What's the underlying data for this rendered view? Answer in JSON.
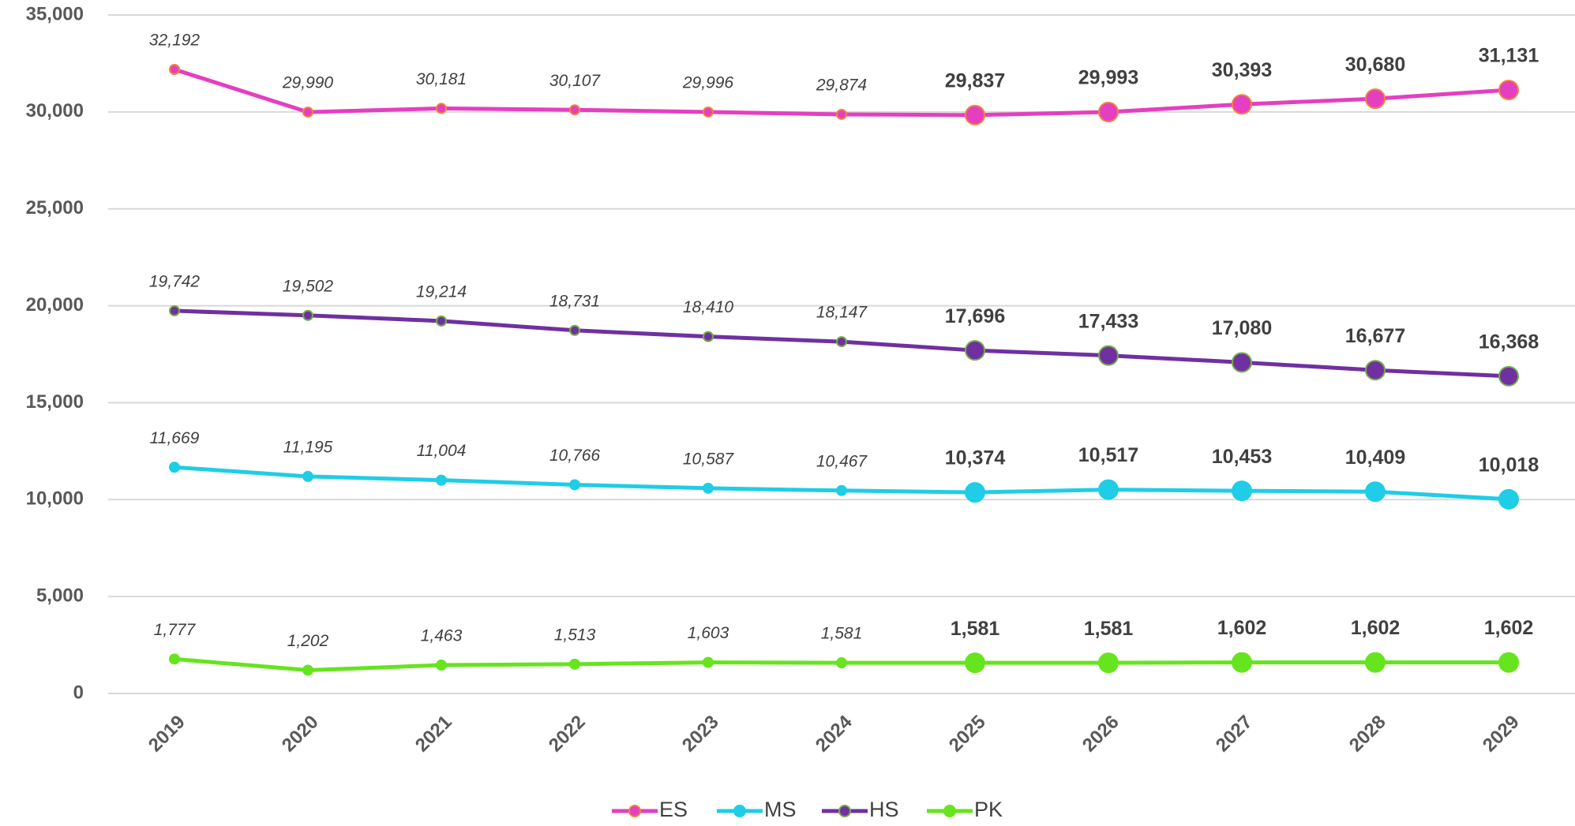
{
  "chart_data": {
    "type": "line",
    "categories": [
      "2019",
      "2020",
      "2021",
      "2022",
      "2023",
      "2024",
      "2025",
      "2026",
      "2027",
      "2028",
      "2029"
    ],
    "ylim": [
      0,
      35000
    ],
    "yticks": [
      0,
      {
        "value": 5000,
        "label": "5,000"
      },
      {
        "value": 10000,
        "label": "10,000"
      },
      {
        "value": 15000,
        "label": "15,000"
      },
      {
        "value": 20000,
        "label": "20,000"
      },
      {
        "value": 25000,
        "label": "25,000"
      },
      {
        "value": 30000,
        "label": "30,000"
      },
      {
        "value": 35000,
        "label": "35,000"
      }
    ],
    "grid": true,
    "legend": "bottom",
    "series": [
      {
        "name": "ES",
        "color": "#e43fc0",
        "edge": "#f4813a",
        "values": [
          32192,
          29990,
          30181,
          30107,
          29996,
          29874,
          29837,
          29993,
          30393,
          30680,
          31131
        ],
        "value_labels": [
          "32,192",
          "29,990",
          "30,181",
          "30,107",
          "29,996",
          "29,874",
          "29,837",
          "29,993",
          "30,393",
          "30,680",
          "31,131"
        ]
      },
      {
        "name": "MS",
        "color": "#1fcde6",
        "edge": "#1fcde6",
        "values": [
          11669,
          11195,
          11004,
          10766,
          10587,
          10467,
          10374,
          10517,
          10453,
          10409,
          10018
        ],
        "value_labels": [
          "11,669",
          "11,195",
          "11,004",
          "10,766",
          "10,587",
          "10,467",
          "10,374",
          "10,517",
          "10,453",
          "10,409",
          "10,018"
        ]
      },
      {
        "name": "HS",
        "color": "#7030a0",
        "edge": "#70ad47",
        "values": [
          19742,
          19502,
          19214,
          18731,
          18410,
          18147,
          17696,
          17433,
          17080,
          16677,
          16368
        ],
        "value_labels": [
          "19,742",
          "19,502",
          "19,214",
          "18,731",
          "18,410",
          "18,147",
          "17,696",
          "17,433",
          "17,080",
          "16,677",
          "16,368"
        ]
      },
      {
        "name": "PK",
        "color": "#66e41e",
        "edge": "#66e41e",
        "values": [
          1777,
          1202,
          1463,
          1513,
          1603,
          1581,
          1581,
          1581,
          1602,
          1602,
          1602
        ],
        "value_labels": [
          "1,777",
          "1,202",
          "1,463",
          "1,513",
          "1,603",
          "1,581",
          "1,581",
          "1,581",
          "1,602",
          "1,602",
          "1,602"
        ]
      }
    ]
  }
}
